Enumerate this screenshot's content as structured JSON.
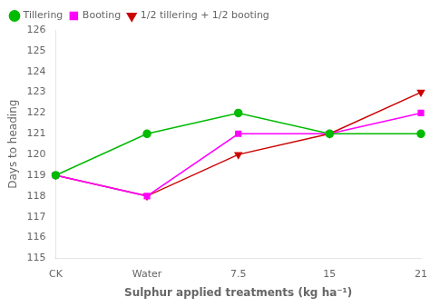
{
  "chart_data": {
    "type": "line",
    "categories": [
      "CK",
      "Water",
      "7.5",
      "15",
      "21"
    ],
    "series": [
      {
        "name": "Tillering",
        "color": "#00bb00",
        "marker": "circle",
        "line_style": "solid",
        "values": [
          119.0,
          121.0,
          122.0,
          121.0,
          121.0
        ]
      },
      {
        "name": "Booting",
        "color": "#ff00ff",
        "marker": "square",
        "line_style": "solid",
        "values": [
          119.0,
          118.0,
          121.0,
          121.0,
          122.0
        ]
      },
      {
        "name": "1/2 tillering + 1/2 booting",
        "color": "#cc0000",
        "marker": "triangle_down",
        "line_style": "solid",
        "values": [
          119.0,
          118.0,
          120.0,
          121.0,
          123.0
        ]
      }
    ],
    "xlabel": "Sulphur applied treatments (kg ha⁻¹)",
    "ylabel": "Days to heading",
    "ylim": [
      115,
      126
    ],
    "yticks": [
      115,
      116,
      117,
      118,
      119,
      120,
      121,
      122,
      123,
      124,
      125,
      126
    ],
    "grid": false,
    "legend": "upper left"
  }
}
